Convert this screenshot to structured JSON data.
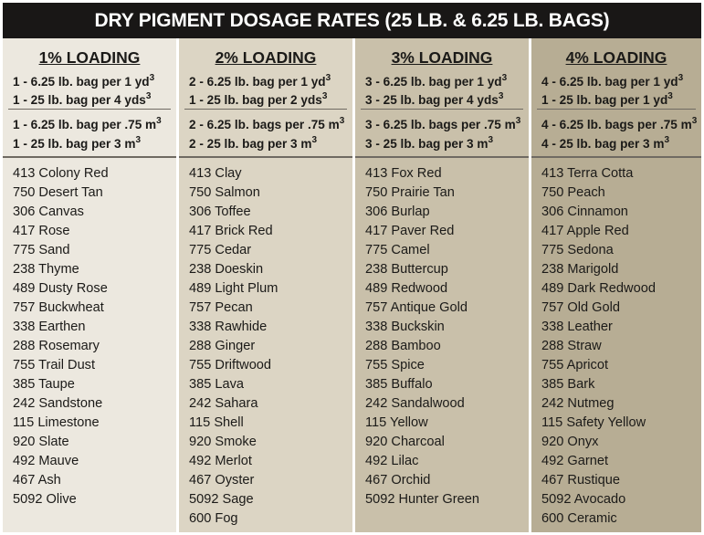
{
  "title": "DRY PIGMENT DOSAGE RATES (25 LB. & 6.25 LB. BAGS)",
  "theme": {
    "title_bg": "#191716",
    "col_bgs": [
      "#ece8df",
      "#dcd5c4",
      "#c9c0aa",
      "#b7ad94"
    ]
  },
  "columns": [
    {
      "loading": "1% LOADING",
      "yd_rates": [
        {
          "text": "1 - 6.25 lb. bag per 1 yd",
          "sup": "3"
        },
        {
          "text": "1 - 25 lb. bag per 4 yds",
          "sup": "3"
        }
      ],
      "m_rates": [
        {
          "text": "1 - 6.25 lb. bag per .75 m",
          "sup": "3"
        },
        {
          "text": "1 - 25 lb. bag per 3 m",
          "sup": "3"
        }
      ],
      "colors": [
        "413 Colony Red",
        "750 Desert Tan",
        "306 Canvas",
        "417 Rose",
        "775 Sand",
        "238 Thyme",
        "489 Dusty Rose",
        "757 Buckwheat",
        "338 Earthen",
        "288 Rosemary",
        "755 Trail Dust",
        "385 Taupe",
        "242 Sandstone",
        "115 Limestone",
        "920 Slate",
        "492 Mauve",
        "467 Ash",
        "5092 Olive"
      ]
    },
    {
      "loading": "2% LOADING",
      "yd_rates": [
        {
          "text": "2 - 6.25 lb. bag per 1 yd",
          "sup": "3"
        },
        {
          "text": "1 - 25 lb. bag per 2 yds",
          "sup": "3"
        }
      ],
      "m_rates": [
        {
          "text": "2 - 6.25 lb. bags per .75 m",
          "sup": "3"
        },
        {
          "text": "2 - 25 lb. bag per 3 m",
          "sup": "3"
        }
      ],
      "colors": [
        "413 Clay",
        "750 Salmon",
        "306 Toffee",
        "417 Brick Red",
        "775 Cedar",
        "238 Doeskin",
        "489 Light Plum",
        "757 Pecan",
        "338 Rawhide",
        "288 Ginger",
        "755 Driftwood",
        "385 Lava",
        "242 Sahara",
        "115 Shell",
        "920 Smoke",
        "492 Merlot",
        "467 Oyster",
        "5092 Sage",
        "600 Fog"
      ]
    },
    {
      "loading": "3% LOADING",
      "yd_rates": [
        {
          "text": "3 - 6.25 lb. bag per 1 yd",
          "sup": "3"
        },
        {
          "text": "3 - 25 lb. bag per 4 yds",
          "sup": "3"
        }
      ],
      "m_rates": [
        {
          "text": "3 - 6.25 lb. bags per .75 m",
          "sup": "3"
        },
        {
          "text": "3 - 25 lb. bag per 3 m",
          "sup": "3"
        }
      ],
      "colors": [
        "413 Fox Red",
        "750 Prairie Tan",
        "306 Burlap",
        "417 Paver Red",
        "775 Camel",
        "238 Buttercup",
        "489 Redwood",
        "757 Antique Gold",
        "338 Buckskin",
        "288 Bamboo",
        "755 Spice",
        "385 Buffalo",
        "242 Sandalwood",
        "115 Yellow",
        "920 Charcoal",
        "492 Lilac",
        "467 Orchid",
        "5092 Hunter Green"
      ]
    },
    {
      "loading": "4% LOADING",
      "yd_rates": [
        {
          "text": "4 - 6.25 lb. bag per 1 yd",
          "sup": "3"
        },
        {
          "text": "1 - 25 lb. bag per 1 yd",
          "sup": "3"
        }
      ],
      "m_rates": [
        {
          "text": "4 - 6.25 lb. bags per .75 m",
          "sup": "3"
        },
        {
          "text": "4 - 25 lb. bag per 3 m",
          "sup": "3"
        }
      ],
      "colors": [
        "413 Terra Cotta",
        "750 Peach",
        "306 Cinnamon",
        "417 Apple Red",
        "775 Sedona",
        "238 Marigold",
        "489 Dark Redwood",
        "757 Old Gold",
        "338 Leather",
        "288 Straw",
        "755 Apricot",
        "385 Bark",
        "242 Nutmeg",
        "115 Safety Yellow",
        "920 Onyx",
        "492 Garnet",
        "467 Rustique",
        "5092 Avocado",
        "600 Ceramic"
      ]
    }
  ]
}
